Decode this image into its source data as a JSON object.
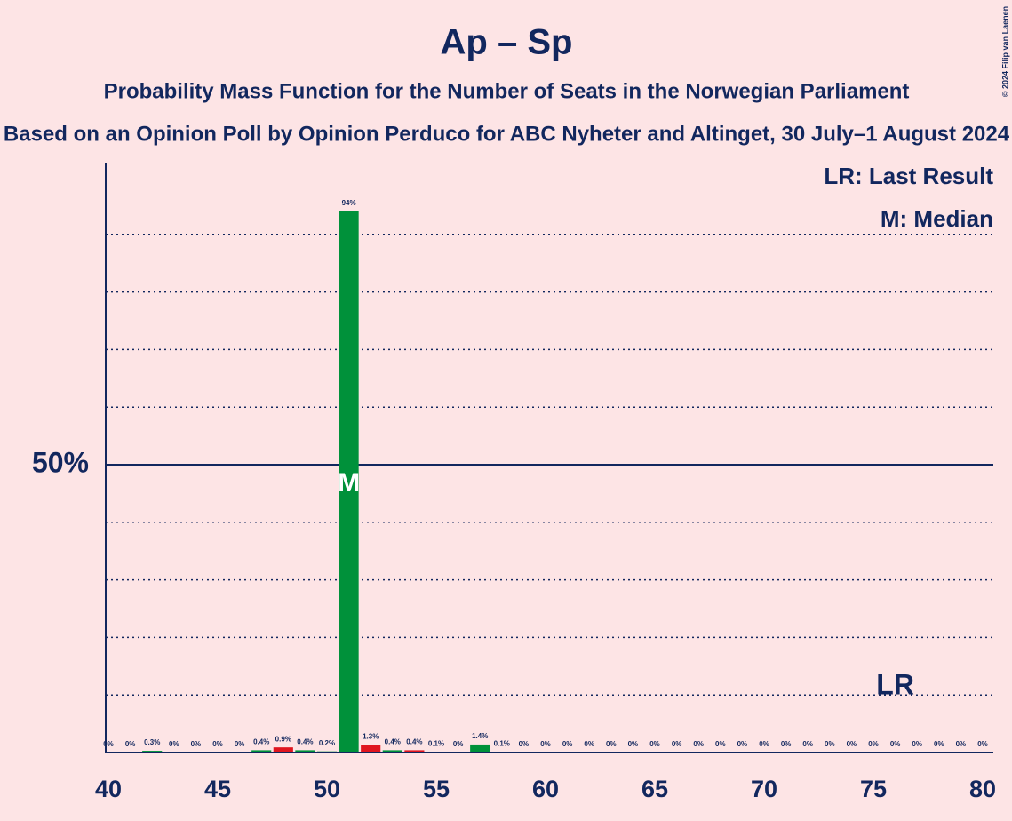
{
  "chart_data": {
    "type": "bar",
    "title": "Ap – Sp",
    "subtitle": "Probability Mass Function for the Number of Seats in the Norwegian Parliament",
    "subtitle2": "Based on an Opinion Poll by Opinion Perduco for ABC Nyheter and Altinget, 30 July–1 August 2024",
    "copyright": "© 2024 Filip van Laenen",
    "x": [
      40,
      41,
      42,
      43,
      44,
      45,
      46,
      47,
      48,
      49,
      50,
      51,
      52,
      53,
      54,
      55,
      56,
      57,
      58,
      59,
      60,
      61,
      62,
      63,
      64,
      65,
      66,
      67,
      68,
      69,
      70,
      71,
      72,
      73,
      74,
      75,
      76,
      77,
      78,
      79,
      80
    ],
    "values": [
      0,
      0,
      0.3,
      0,
      0,
      0,
      0,
      0.4,
      0.9,
      0.4,
      0.2,
      94,
      1.3,
      0.4,
      0.4,
      0.1,
      0,
      1.4,
      0.1,
      0,
      0,
      0,
      0,
      0,
      0,
      0,
      0,
      0,
      0,
      0,
      0,
      0,
      0,
      0,
      0,
      0,
      0,
      0,
      0,
      0,
      0
    ],
    "value_labels": [
      "0%",
      "0%",
      "0.3%",
      "0%",
      "0%",
      "0%",
      "0%",
      "0.4%",
      "0.9%",
      "0.4%",
      "0.2%",
      "94%",
      "1.3%",
      "0.4%",
      "0.4%",
      "0.1%",
      "0%",
      "1.4%",
      "0.1%",
      "0%",
      "0%",
      "0%",
      "0%",
      "0%",
      "0%",
      "0%",
      "0%",
      "0%",
      "0%",
      "0%",
      "0%",
      "0%",
      "0%",
      "0%",
      "0%",
      "0%",
      "0%",
      "0%",
      "0%",
      "0%",
      "0%"
    ],
    "colors": [
      "#00913a",
      "#00913a",
      "#00913a",
      "#00913a",
      "#00913a",
      "#00913a",
      "#00913a",
      "#00913a",
      "#e0151f",
      "#00913a",
      "#00913a",
      "#00913a",
      "#e0151f",
      "#00913a",
      "#e0151f",
      "#00913a",
      "#00913a",
      "#00913a",
      "#00913a",
      "#00913a",
      "#00913a",
      "#00913a",
      "#00913a",
      "#00913a",
      "#00913a",
      "#00913a",
      "#00913a",
      "#00913a",
      "#00913a",
      "#00913a",
      "#00913a",
      "#00913a",
      "#00913a",
      "#00913a",
      "#00913a",
      "#00913a",
      "#00913a",
      "#00913a",
      "#00913a",
      "#00913a",
      "#00913a"
    ],
    "xlim": [
      40,
      80
    ],
    "xticks": [
      40,
      45,
      50,
      55,
      60,
      65,
      70,
      75,
      80
    ],
    "ylim": [
      0,
      100
    ],
    "yticks": [
      {
        "value": 50,
        "label": "50%"
      }
    ],
    "minor_gridlines": [
      10,
      20,
      30,
      40,
      60,
      70,
      80,
      90
    ],
    "legend": [
      "LR: Last Result",
      "M: Median"
    ],
    "annotations": [
      {
        "text": "M",
        "x": 51
      },
      {
        "text": "LR",
        "x": 76
      }
    ]
  }
}
